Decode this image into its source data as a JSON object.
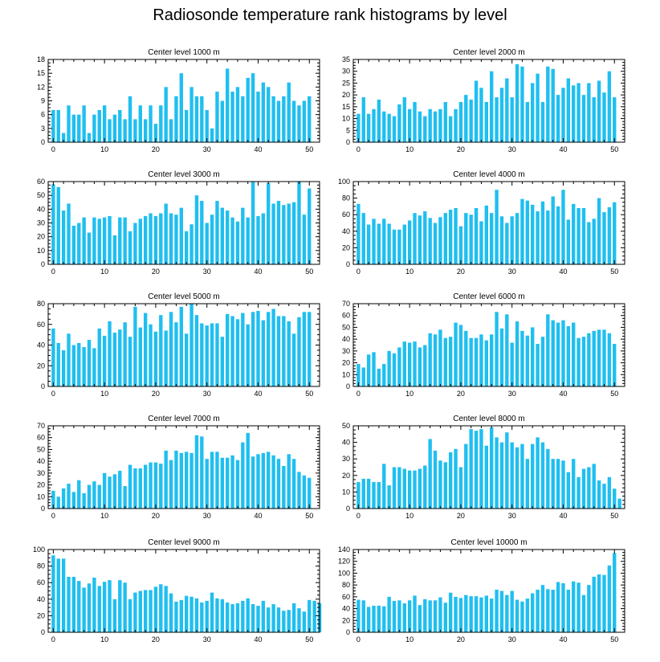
{
  "title": "Radiosonde temperature rank histograms by level",
  "chart_data": [
    {
      "type": "bar",
      "title": "Center level 1000 m",
      "xlim": [
        -1,
        52
      ],
      "ylim": [
        0,
        18
      ],
      "xticks": [
        0,
        10,
        20,
        30,
        40,
        50
      ],
      "yticks": [
        0,
        3,
        6,
        9,
        12,
        15,
        18
      ],
      "values": [
        7,
        7,
        2,
        8,
        6,
        6,
        8,
        2,
        6,
        7,
        8,
        5,
        6,
        7,
        5,
        10,
        5,
        8,
        5,
        8,
        4,
        8,
        12,
        5,
        10,
        15,
        7,
        12,
        10,
        10,
        7,
        3,
        11,
        9,
        16,
        11,
        12,
        10,
        14,
        15,
        11,
        13,
        12,
        10,
        9,
        10,
        13,
        9,
        8,
        9,
        10
      ]
    },
    {
      "type": "bar",
      "title": "Center level 2000 m",
      "xlim": [
        -1,
        52
      ],
      "ylim": [
        0,
        35
      ],
      "xticks": [
        0,
        10,
        20,
        30,
        40,
        50
      ],
      "yticks": [
        0,
        5,
        10,
        15,
        20,
        25,
        30,
        35
      ],
      "values": [
        12,
        19,
        12,
        14,
        18,
        13,
        12,
        11,
        16,
        19,
        14,
        17,
        13,
        11,
        14,
        13,
        14,
        17,
        11,
        14,
        17,
        20,
        18,
        26,
        23,
        17,
        30,
        19,
        23,
        27,
        19,
        33,
        32,
        17,
        25,
        29,
        17,
        32,
        31,
        20,
        23,
        27,
        24,
        25,
        20,
        25,
        19,
        26,
        21,
        30,
        19
      ]
    },
    {
      "type": "bar",
      "title": "Center level 3000 m",
      "xlim": [
        -1,
        52
      ],
      "ylim": [
        0,
        60
      ],
      "xticks": [
        0,
        10,
        20,
        30,
        40,
        50
      ],
      "yticks": [
        0,
        10,
        20,
        30,
        40,
        50,
        60
      ],
      "values": [
        58,
        56,
        39,
        44,
        28,
        30,
        34,
        23,
        34,
        33,
        34,
        35,
        21,
        34,
        34,
        24,
        30,
        33,
        35,
        37,
        35,
        37,
        44,
        37,
        36,
        41,
        24,
        29,
        50,
        46,
        30,
        36,
        46,
        41,
        39,
        34,
        31,
        41,
        34,
        60,
        35,
        37,
        59,
        44,
        46,
        43,
        44,
        45,
        60,
        36,
        55
      ]
    },
    {
      "type": "bar",
      "title": "Center level 4000 m",
      "xlim": [
        -1,
        52
      ],
      "ylim": [
        0,
        100
      ],
      "xticks": [
        0,
        10,
        20,
        30,
        40,
        50
      ],
      "yticks": [
        0,
        20,
        40,
        60,
        80,
        100
      ],
      "values": [
        73,
        62,
        48,
        55,
        49,
        55,
        49,
        42,
        42,
        48,
        53,
        62,
        59,
        64,
        56,
        50,
        57,
        62,
        66,
        68,
        46,
        62,
        60,
        68,
        52,
        71,
        62,
        90,
        58,
        50,
        58,
        62,
        79,
        77,
        72,
        64,
        76,
        65,
        82,
        70,
        90,
        54,
        73,
        68,
        68,
        51,
        55,
        80,
        63,
        69,
        75
      ]
    },
    {
      "type": "bar",
      "title": "Center level 5000 m",
      "xlim": [
        -1,
        52
      ],
      "ylim": [
        0,
        80
      ],
      "xticks": [
        0,
        10,
        20,
        30,
        40,
        50
      ],
      "yticks": [
        0,
        20,
        40,
        60,
        80
      ],
      "values": [
        56,
        42,
        35,
        51,
        40,
        42,
        38,
        45,
        37,
        56,
        49,
        63,
        52,
        55,
        62,
        48,
        77,
        57,
        71,
        60,
        53,
        69,
        54,
        72,
        62,
        77,
        51,
        80,
        69,
        61,
        59,
        61,
        61,
        48,
        70,
        68,
        65,
        71,
        60,
        72,
        73,
        64,
        72,
        75,
        68,
        68,
        63,
        51,
        67,
        72,
        72
      ]
    },
    {
      "type": "bar",
      "title": "Center level 6000 m",
      "xlim": [
        -1,
        52
      ],
      "ylim": [
        0,
        70
      ],
      "xticks": [
        0,
        10,
        20,
        30,
        40,
        50
      ],
      "yticks": [
        0,
        10,
        20,
        30,
        40,
        50,
        60,
        70
      ],
      "values": [
        19,
        16,
        27,
        29,
        15,
        19,
        30,
        28,
        33,
        38,
        37,
        38,
        33,
        35,
        45,
        44,
        48,
        41,
        42,
        54,
        52,
        47,
        41,
        41,
        44,
        39,
        44,
        63,
        49,
        61,
        37,
        55,
        47,
        43,
        50,
        36,
        42,
        61,
        56,
        54,
        56,
        51,
        54,
        41,
        42,
        45,
        47,
        48,
        48,
        45,
        36
      ]
    },
    {
      "type": "bar",
      "title": "Center level 7000 m",
      "xlim": [
        -1,
        52
      ],
      "ylim": [
        0,
        70
      ],
      "xticks": [
        0,
        10,
        20,
        30,
        40,
        50
      ],
      "yticks": [
        0,
        10,
        20,
        30,
        40,
        50,
        60,
        70
      ],
      "values": [
        15,
        10,
        17,
        21,
        14,
        24,
        13,
        20,
        23,
        20,
        30,
        27,
        29,
        32,
        19,
        37,
        34,
        34,
        37,
        39,
        39,
        38,
        49,
        41,
        49,
        47,
        48,
        47,
        62,
        61,
        42,
        48,
        48,
        43,
        43,
        45,
        41,
        56,
        64,
        44,
        46,
        47,
        48,
        45,
        42,
        36,
        46,
        42,
        31,
        28,
        26
      ]
    },
    {
      "type": "bar",
      "title": "Center level 8000 m",
      "xlim": [
        -1,
        52
      ],
      "ylim": [
        0,
        50
      ],
      "xticks": [
        0,
        10,
        20,
        30,
        40,
        50
      ],
      "yticks": [
        0,
        10,
        20,
        30,
        40,
        50
      ],
      "values": [
        16,
        18,
        18,
        16,
        16,
        27,
        14,
        25,
        25,
        24,
        23,
        23,
        24,
        26,
        42,
        35,
        29,
        28,
        34,
        36,
        25,
        39,
        48,
        47,
        48,
        38,
        49,
        43,
        40,
        46,
        40,
        37,
        39,
        30,
        39,
        43,
        40,
        36,
        30,
        30,
        29,
        22,
        30,
        19,
        24,
        25,
        27,
        17,
        15,
        19,
        12,
        6
      ]
    },
    {
      "type": "bar",
      "title": "Center level 9000 m",
      "xlim": [
        -1,
        52
      ],
      "ylim": [
        0,
        100
      ],
      "xticks": [
        0,
        10,
        20,
        30,
        40,
        50
      ],
      "yticks": [
        0,
        20,
        40,
        60,
        80,
        100
      ],
      "values": [
        93,
        89,
        89,
        67,
        67,
        62,
        54,
        59,
        66,
        56,
        61,
        63,
        40,
        63,
        60,
        40,
        48,
        50,
        51,
        51,
        55,
        58,
        56,
        47,
        37,
        39,
        44,
        43,
        41,
        36,
        38,
        48,
        41,
        40,
        36,
        34,
        35,
        38,
        41,
        34,
        32,
        38,
        30,
        34,
        30,
        26,
        27,
        35,
        29,
        25,
        39,
        38,
        35
      ]
    },
    {
      "type": "bar",
      "title": "Center level 10000 m",
      "xlim": [
        -1,
        52
      ],
      "ylim": [
        0,
        140
      ],
      "xticks": [
        0,
        10,
        20,
        30,
        40,
        50
      ],
      "yticks": [
        0,
        20,
        40,
        60,
        80,
        100,
        120,
        140
      ],
      "values": [
        55,
        54,
        43,
        45,
        45,
        44,
        60,
        53,
        54,
        49,
        54,
        62,
        46,
        56,
        54,
        54,
        59,
        50,
        67,
        60,
        58,
        63,
        61,
        61,
        59,
        62,
        57,
        72,
        70,
        63,
        70,
        55,
        52,
        57,
        66,
        72,
        80,
        73,
        72,
        85,
        83,
        72,
        86,
        84,
        63,
        80,
        94,
        98,
        97,
        113,
        134
      ]
    }
  ]
}
